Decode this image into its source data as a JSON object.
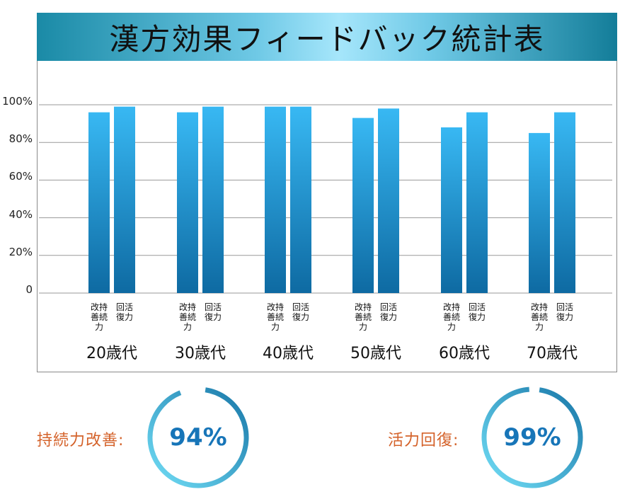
{
  "chart_data": {
    "type": "bar",
    "title": "漢方効果フィードバック統計表",
    "categories": [
      "20歳代",
      "30歳代",
      "40歳代",
      "50歳代",
      "60歳代",
      "70歳代"
    ],
    "series": [
      {
        "name": "改持善続力",
        "label_lines": [
          "改持",
          "善続",
          "力"
        ],
        "values": [
          96,
          96,
          99,
          93,
          88,
          85
        ]
      },
      {
        "name": "回活復力",
        "label_lines": [
          "回活",
          "復力"
        ],
        "values": [
          99,
          99,
          99,
          98,
          96,
          96
        ]
      }
    ],
    "yticks": [
      "0",
      "20%",
      "40%",
      "60%",
      "80%",
      "100%"
    ],
    "ylim": [
      0,
      100
    ],
    "grid": true
  },
  "summary": {
    "left": {
      "label": "持続力改善:",
      "value": "94%",
      "fraction": 0.94
    },
    "right": {
      "label": "活力回復:",
      "value": "99%",
      "fraction": 0.99
    }
  },
  "colors": {
    "bar_top": "#38b8f3",
    "bar_bottom": "#0e6aa2",
    "ring_start": "#72def6",
    "ring_end": "#1877a8",
    "value_text": "#1775b8",
    "label_text": "#d4622a"
  }
}
